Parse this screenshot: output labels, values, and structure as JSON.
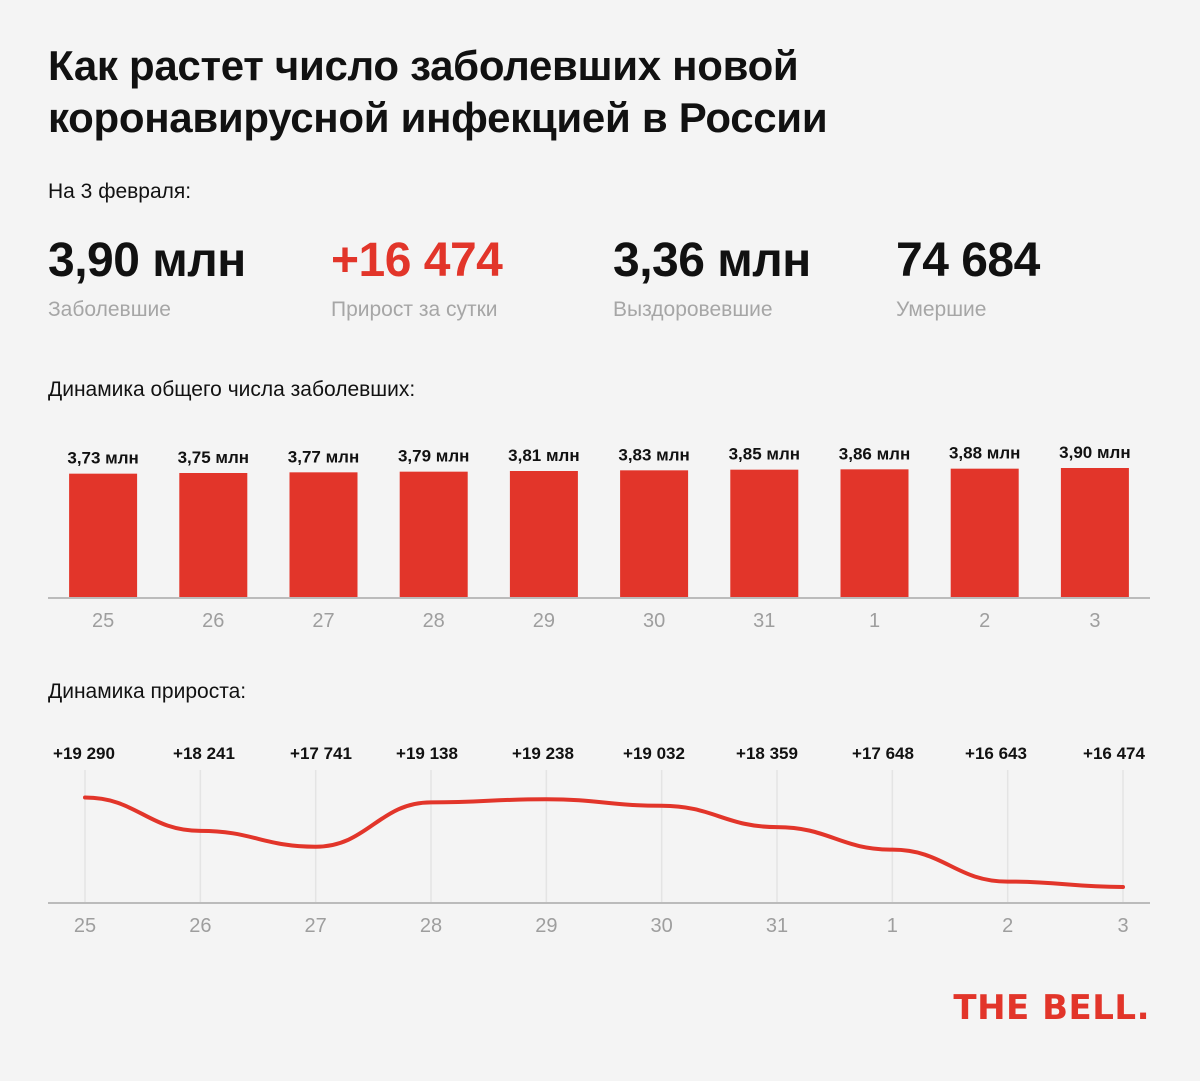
{
  "title": {
    "line1": "Как растет число заболевших новой",
    "line2": "коронавирусной инфекцией в России"
  },
  "date_label": "На 3 февраля:",
  "stats": [
    {
      "value": "3,90 млн",
      "label": "Заболевшие",
      "accent": false
    },
    {
      "value": "+16 474",
      "label": "Прирост за сутки",
      "accent": true
    },
    {
      "value": "3,36 млн",
      "label": "Выздоровевшие",
      "accent": false
    },
    {
      "value": "74 684",
      "label": "Умершие",
      "accent": false
    }
  ],
  "bar_section_label": "Динамика общего числа заболевших:",
  "line_section_label": "Динамика прироста:",
  "logo": "THE BELL.",
  "colors": {
    "accent": "#e2352a",
    "axis": "#bbbbbb",
    "tick": "#9e9e9e"
  },
  "chart_data": [
    {
      "type": "bar",
      "categories": [
        "25",
        "26",
        "27",
        "28",
        "29",
        "30",
        "31",
        "1",
        "2",
        "3"
      ],
      "values": [
        3.73,
        3.75,
        3.77,
        3.79,
        3.81,
        3.83,
        3.85,
        3.86,
        3.88,
        3.9
      ],
      "data_labels": [
        "3,73 млн",
        "3,75 млн",
        "3,77 млн",
        "3,79 млн",
        "3,81 млн",
        "3,83 млн",
        "3,85 млн",
        "3,86 млн",
        "3,88 млн",
        "3,90 млн"
      ],
      "ylim": [
        0,
        4.5
      ],
      "color": "#e2352a",
      "grid": false
    },
    {
      "type": "line",
      "categories": [
        "25",
        "26",
        "27",
        "28",
        "29",
        "30",
        "31",
        "1",
        "2",
        "3"
      ],
      "values": [
        19290,
        18241,
        17741,
        19138,
        19238,
        19032,
        18359,
        17648,
        16643,
        16474
      ],
      "data_labels": [
        "+19 290",
        "+18 241",
        "+17 741",
        "+19 138",
        "+19 238",
        "+19 032",
        "+18 359",
        "+17 648",
        "+16 643",
        "+16 474"
      ],
      "ylim": [
        16000,
        20000
      ],
      "color": "#e2352a",
      "grid": "vertical"
    }
  ]
}
